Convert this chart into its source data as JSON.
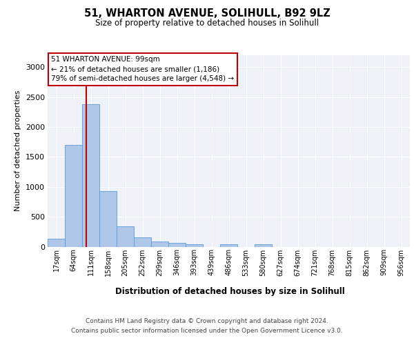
{
  "title_line1": "51, WHARTON AVENUE, SOLIHULL, B92 9LZ",
  "title_line2": "Size of property relative to detached houses in Solihull",
  "xlabel": "Distribution of detached houses by size in Solihull",
  "ylabel": "Number of detached properties",
  "annotation_line1": "51 WHARTON AVENUE: 99sqm",
  "annotation_line2": "← 21% of detached houses are smaller (1,186)",
  "annotation_line3": "79% of semi-detached houses are larger (4,548) →",
  "categories": [
    "17sqm",
    "64sqm",
    "111sqm",
    "158sqm",
    "205sqm",
    "252sqm",
    "299sqm",
    "346sqm",
    "393sqm",
    "439sqm",
    "486sqm",
    "533sqm",
    "580sqm",
    "627sqm",
    "674sqm",
    "721sqm",
    "768sqm",
    "815sqm",
    "862sqm",
    "909sqm",
    "956sqm"
  ],
  "values": [
    130,
    1700,
    2380,
    930,
    340,
    155,
    90,
    60,
    45,
    0,
    35,
    0,
    40,
    0,
    0,
    0,
    0,
    0,
    0,
    0,
    0
  ],
  "bar_color": "#aec6e8",
  "bar_edge_color": "#5b9bd5",
  "marker_color": "#c00000",
  "ylim": [
    0,
    3200
  ],
  "yticks": [
    0,
    500,
    1000,
    1500,
    2000,
    2500,
    3000
  ],
  "annotation_box_bg": "#ffffff",
  "annotation_box_edge": "#c00000",
  "footer_line1": "Contains HM Land Registry data © Crown copyright and database right 2024.",
  "footer_line2": "Contains public sector information licensed under the Open Government Licence v3.0.",
  "bg_color": "#ffffff",
  "plot_bg_color": "#eef2f8"
}
